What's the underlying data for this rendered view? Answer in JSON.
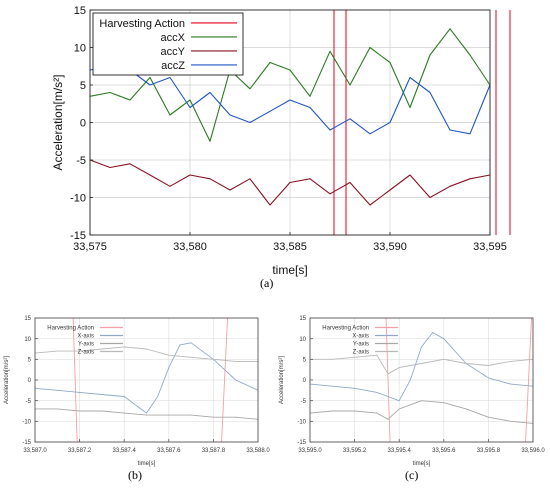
{
  "chart_data": [
    {
      "type": "line",
      "panel_label": "(a)",
      "xlabel": "time[s]",
      "ylabel": "Acceleration[m/s²]",
      "xlim": [
        33575,
        33595
      ],
      "ylim": [
        -15,
        15
      ],
      "xticks": [
        33575,
        33580,
        33585,
        33590,
        33595
      ],
      "xtick_labels": [
        "33,575",
        "33,580",
        "33,585",
        "33,590",
        "33,595"
      ],
      "yticks": [
        -15,
        -10,
        -5,
        0,
        5,
        10,
        15
      ],
      "ytick_labels": [
        "-15",
        "-10",
        "-5",
        "0",
        "5",
        "10",
        "15"
      ],
      "grid": true,
      "legend_position": "top-left",
      "harvesting_lines": [
        33587.2,
        33587.8,
        33595.3,
        33596.0
      ],
      "series": [
        {
          "name": "Harvesting Action",
          "color": "#e8001c",
          "style": "vertical-lines"
        },
        {
          "name": "accX",
          "color": "#2a7a22",
          "x": [
            33575,
            33576,
            33577,
            33578,
            33579,
            33580,
            33581,
            33582,
            33583,
            33584,
            33585,
            33586,
            33587,
            33588,
            33589,
            33590,
            33591,
            33592,
            33593,
            33594,
            33595
          ],
          "y": [
            3.5,
            4.0,
            3.0,
            6.0,
            1.0,
            3.0,
            -2.5,
            7.0,
            4.5,
            8.0,
            7.0,
            3.5,
            9.5,
            5.0,
            10.0,
            8.0,
            2.0,
            9.0,
            12.5,
            9.0,
            5.0
          ]
        },
        {
          "name": "accY",
          "color": "#8a1222",
          "x": [
            33575,
            33576,
            33577,
            33578,
            33579,
            33580,
            33581,
            33582,
            33583,
            33584,
            33585,
            33586,
            33587,
            33588,
            33589,
            33590,
            33591,
            33592,
            33593,
            33594,
            33595
          ],
          "y": [
            -5.0,
            -6.0,
            -5.5,
            -7.0,
            -8.5,
            -7.0,
            -7.5,
            -9.0,
            -7.5,
            -11.0,
            -8.0,
            -7.5,
            -9.5,
            -8.0,
            -11.0,
            -9.0,
            -7.0,
            -10.0,
            -8.5,
            -7.5,
            -7.0
          ]
        },
        {
          "name": "accZ",
          "color": "#1f55c8",
          "x": [
            33575,
            33576,
            33577,
            33578,
            33579,
            33580,
            33581,
            33582,
            33583,
            33584,
            33585,
            33586,
            33587,
            33588,
            33589,
            33590,
            33591,
            33592,
            33593,
            33594,
            33595
          ],
          "y": [
            7.0,
            7.5,
            7.0,
            5.0,
            6.0,
            2.0,
            4.0,
            1.0,
            0.0,
            1.5,
            3.0,
            2.0,
            -1.0,
            0.5,
            -1.5,
            0.0,
            6.0,
            4.0,
            -1.0,
            -1.5,
            5.0
          ]
        }
      ]
    },
    {
      "type": "line",
      "panel_label": "(b)",
      "xlabel": "time[s]",
      "ylabel": "Acceleration[m/s²]",
      "xlim": [
        33587.0,
        33588.0
      ],
      "ylim": [
        -15,
        15
      ],
      "xticks": [
        33587.0,
        33587.2,
        33587.4,
        33587.6,
        33587.8,
        33588.0
      ],
      "xtick_labels": [
        "33,587.0",
        "33,587.2",
        "33,587.4",
        "33,587.6",
        "33,587.8",
        "33,588.0"
      ],
      "yticks": [
        -15,
        -10,
        -5,
        0,
        5,
        10,
        15
      ],
      "ytick_labels": [
        "-15",
        "-10",
        "-5",
        "0",
        "5",
        "10",
        "15"
      ],
      "grid": true,
      "legend_position": "top-left",
      "harvesting_lines": [
        33587.18,
        33587.85
      ],
      "series": [
        {
          "name": "Harvesting Action",
          "color": "#f2a0a8",
          "style": "vertical-lines"
        },
        {
          "name": "X-axis",
          "color": "#8fa9c9",
          "x": [
            33587.0,
            33587.1,
            33587.2,
            33587.3,
            33587.4,
            33587.5,
            33587.55,
            33587.6,
            33587.65,
            33587.7,
            33587.8,
            33587.9,
            33588.0
          ],
          "y": [
            -2.0,
            -2.5,
            -3.0,
            -3.5,
            -4.0,
            -8.0,
            -4.0,
            3.0,
            8.5,
            9.0,
            5.0,
            0.0,
            -2.5
          ]
        },
        {
          "name": "Y-axis",
          "color": "#a7a7a7",
          "x": [
            33587.0,
            33587.1,
            33587.2,
            33587.3,
            33587.4,
            33587.5,
            33587.6,
            33587.7,
            33587.8,
            33587.9,
            33588.0
          ],
          "y": [
            -7.0,
            -7.0,
            -7.5,
            -7.5,
            -8.0,
            -8.5,
            -8.5,
            -8.5,
            -9.0,
            -9.0,
            -9.5
          ]
        },
        {
          "name": "Z-axis",
          "color": "#b8b8b8",
          "x": [
            33587.0,
            33587.1,
            33587.2,
            33587.3,
            33587.4,
            33587.5,
            33587.6,
            33587.7,
            33587.8,
            33587.9,
            33588.0
          ],
          "y": [
            6.5,
            7.0,
            7.0,
            7.5,
            8.0,
            7.5,
            6.0,
            5.5,
            5.0,
            4.5,
            4.5
          ]
        }
      ]
    },
    {
      "type": "line",
      "panel_label": "(c)",
      "xlabel": "time[s]",
      "ylabel": "Acceleration[m/s²]",
      "xlim": [
        33595.0,
        33596.0
      ],
      "ylim": [
        -15,
        15
      ],
      "xticks": [
        33595.0,
        33595.2,
        33595.4,
        33595.6,
        33595.8,
        33596.0
      ],
      "xtick_labels": [
        "33,595.0",
        "33,595.2",
        "33,595.4",
        "33,595.6",
        "33,595.8",
        "33,596.0"
      ],
      "yticks": [
        -15,
        -10,
        -5,
        0,
        5,
        10,
        15
      ],
      "ytick_labels": [
        "-15",
        "-10",
        "-5",
        "0",
        "5",
        "10",
        "15"
      ],
      "grid": true,
      "legend_position": "top-left",
      "harvesting_lines": [
        33595.35,
        33595.98
      ],
      "series": [
        {
          "name": "Harvesting Action",
          "color": "#f2a0a8",
          "style": "vertical-lines"
        },
        {
          "name": "X-axis",
          "color": "#8fa9c9",
          "x": [
            33595.0,
            33595.1,
            33595.2,
            33595.3,
            33595.4,
            33595.45,
            33595.5,
            33595.55,
            33595.6,
            33595.7,
            33595.8,
            33595.9,
            33596.0
          ],
          "y": [
            -1.0,
            -1.5,
            -2.0,
            -3.0,
            -5.0,
            0.0,
            8.0,
            11.5,
            10.0,
            4.0,
            0.5,
            -1.0,
            -1.5
          ]
        },
        {
          "name": "Y-axis",
          "color": "#a7a7a7",
          "x": [
            33595.0,
            33595.1,
            33595.2,
            33595.3,
            33595.35,
            33595.4,
            33595.5,
            33595.6,
            33595.7,
            33595.8,
            33595.9,
            33596.0
          ],
          "y": [
            -8.0,
            -7.5,
            -7.5,
            -8.0,
            -9.5,
            -7.0,
            -5.0,
            -5.5,
            -7.0,
            -9.0,
            -10.0,
            -10.5
          ]
        },
        {
          "name": "Z-axis",
          "color": "#b8b8b8",
          "x": [
            33595.0,
            33595.1,
            33595.2,
            33595.3,
            33595.35,
            33595.4,
            33595.5,
            33595.6,
            33595.7,
            33595.8,
            33595.9,
            33596.0
          ],
          "y": [
            5.0,
            5.0,
            5.5,
            6.0,
            1.5,
            3.0,
            4.0,
            5.0,
            4.0,
            3.5,
            4.5,
            5.0
          ]
        }
      ]
    }
  ]
}
